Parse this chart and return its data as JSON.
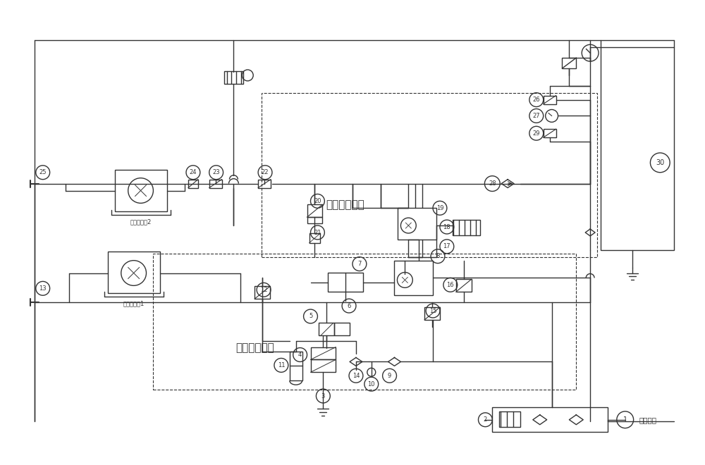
{
  "bg_color": "#ffffff",
  "line_color": "#333333",
  "label1": "第一测试回路",
  "label2": "第二测试回路",
  "label3": "被测试单关2",
  "label4": "被测试单关1",
  "label5": "车间气源"
}
